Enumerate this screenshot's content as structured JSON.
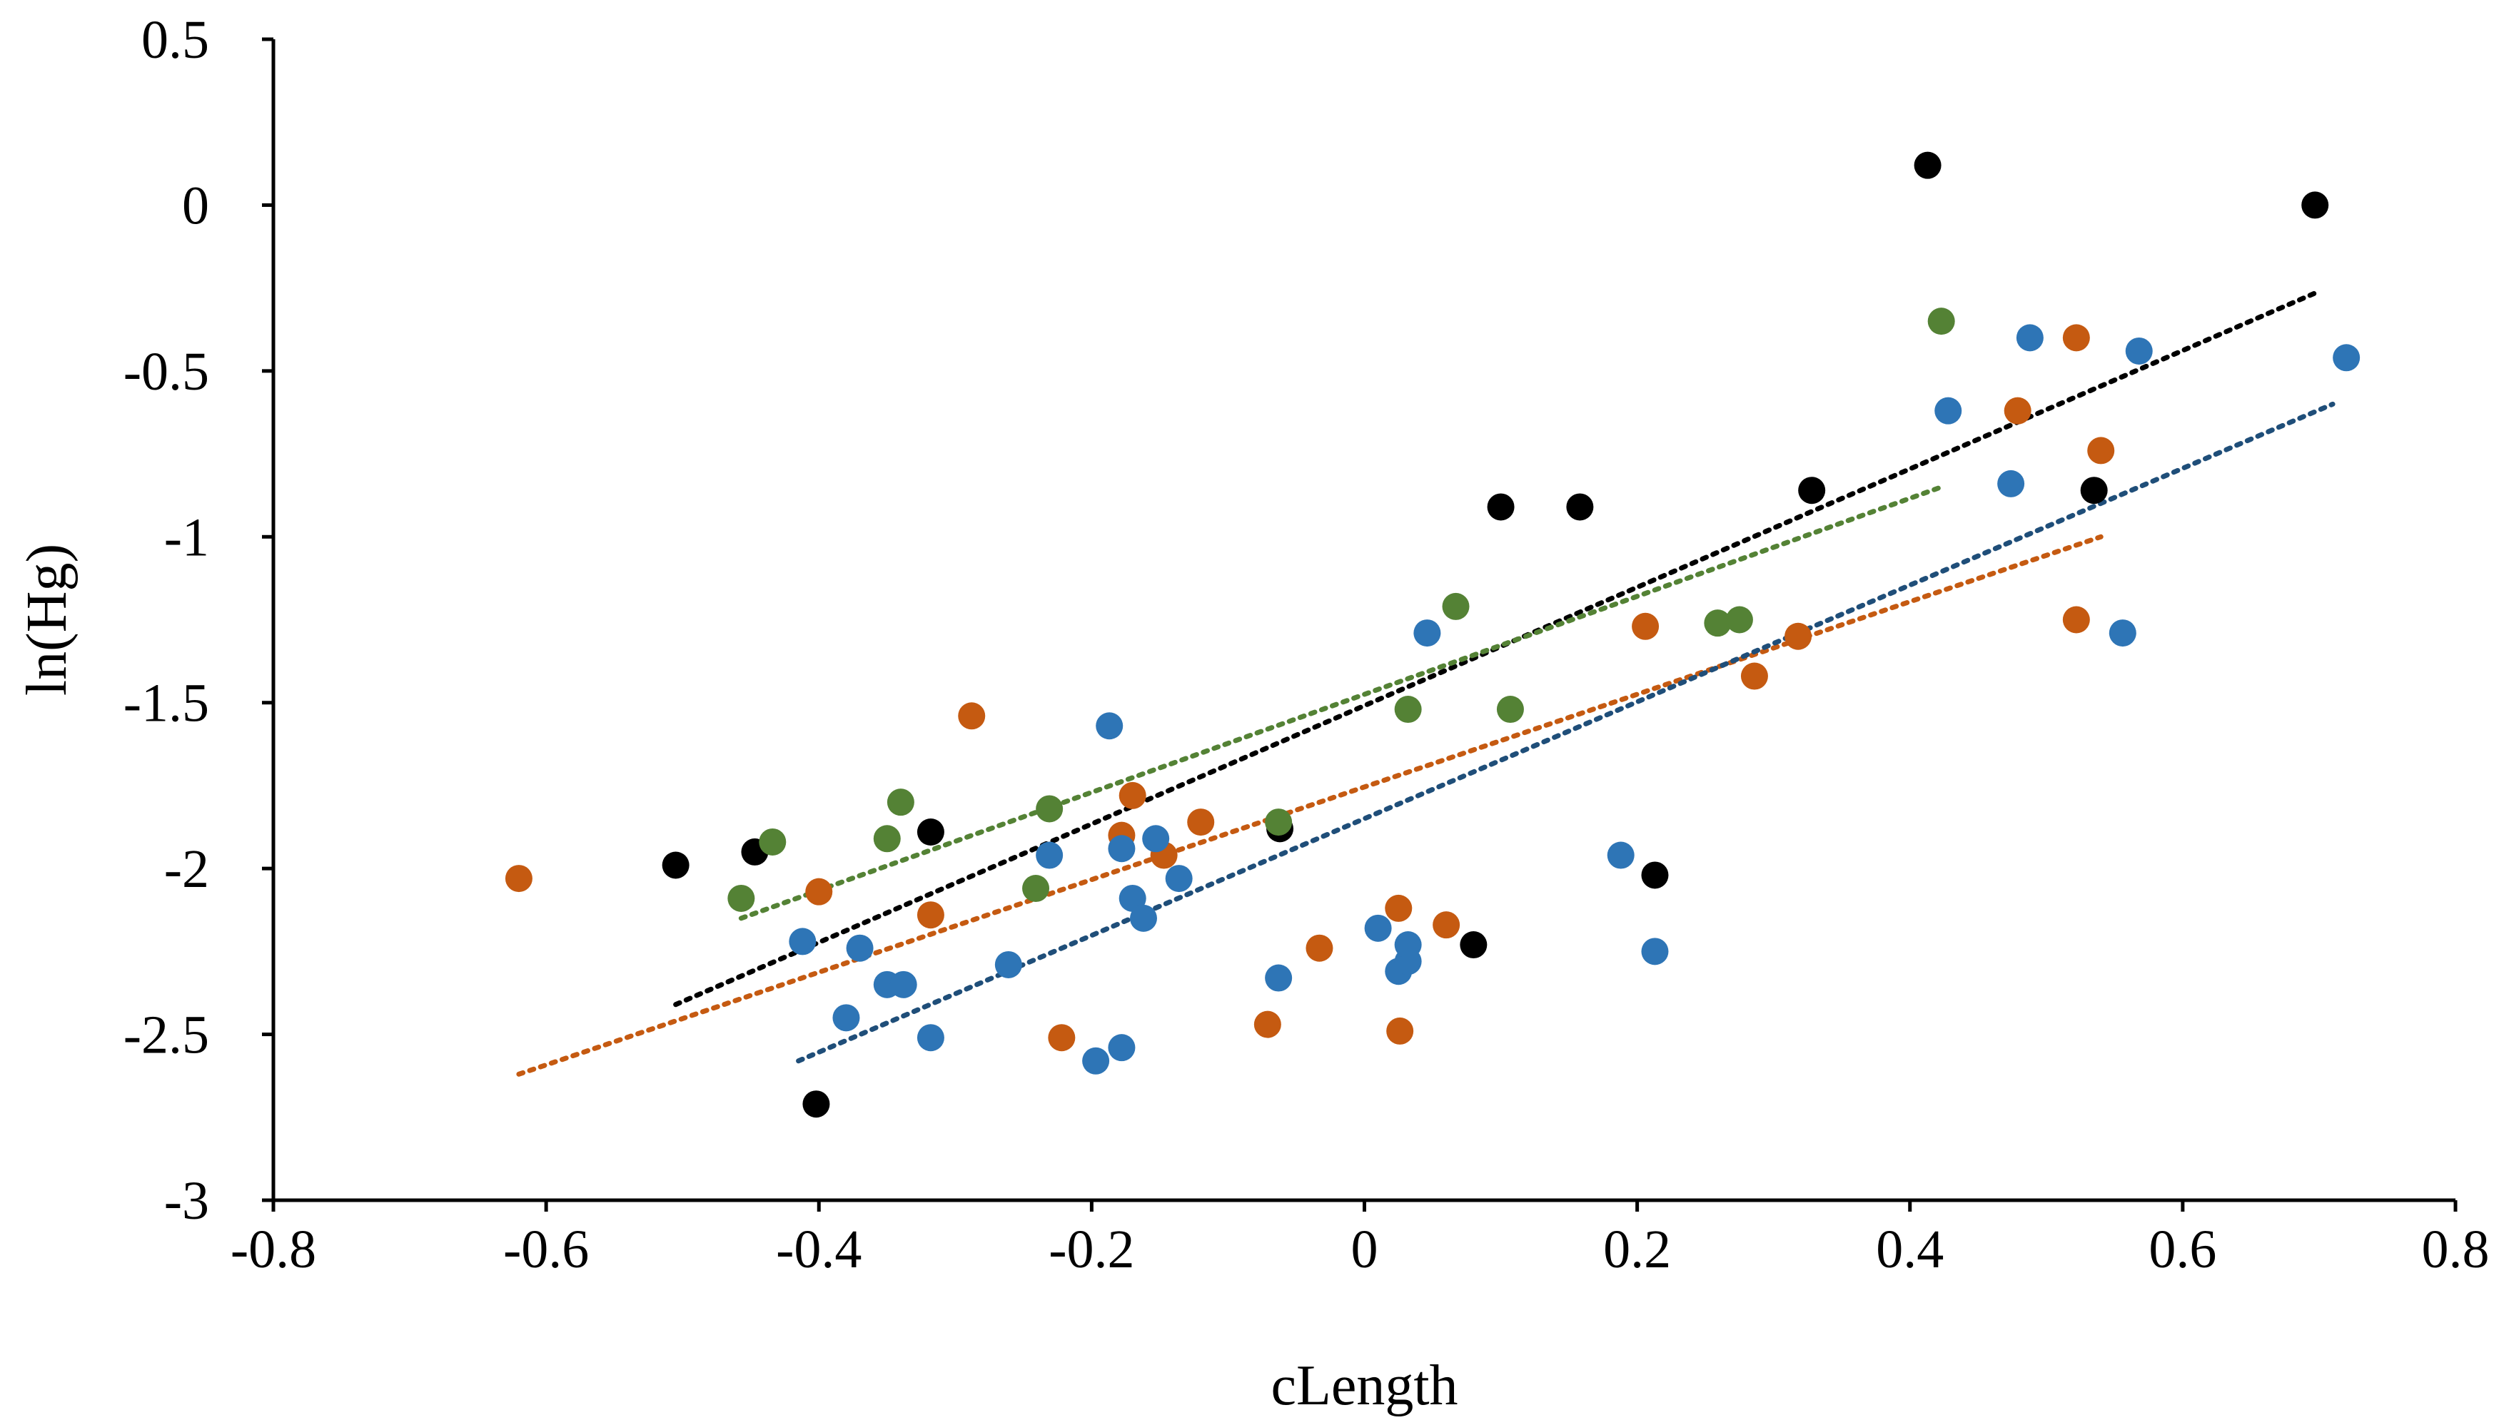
{
  "chart_data": {
    "type": "scatter",
    "title": "",
    "xlabel": "cLength",
    "ylabel": "ln(Hg)",
    "xlim": [
      -0.8,
      0.8
    ],
    "ylim": [
      -3,
      0.5
    ],
    "x_ticks": [
      -0.8,
      -0.6,
      -0.4,
      -0.2,
      0,
      0.2,
      0.4,
      0.6,
      0.8
    ],
    "x_tick_labels": [
      "-0.8",
      "-0.6",
      "-0.4",
      "-0.2",
      "0",
      "0.2",
      "0.4",
      "0.6",
      "0.8"
    ],
    "y_ticks": [
      0.5,
      0,
      -0.5,
      -1,
      -1.5,
      -2,
      -2.5,
      -3
    ],
    "y_tick_labels": [
      "0.5",
      "0",
      "-0.5",
      "-1",
      "-1.5",
      "-2",
      "-2.5",
      "-3"
    ],
    "grid": false,
    "legend": "none",
    "series": [
      {
        "name": "black",
        "color": "#000000",
        "trend_color": "#000000",
        "trendline": {
          "x": [
            -0.505,
            0.7
          ],
          "y": [
            -2.41,
            -0.26
          ]
        },
        "points": [
          [
            -0.505,
            -1.99
          ],
          [
            -0.447,
            -1.95
          ],
          [
            -0.318,
            -1.89
          ],
          [
            -0.402,
            -2.71
          ],
          [
            -0.062,
            -1.88
          ],
          [
            0.1,
            -0.91
          ],
          [
            0.158,
            -0.91
          ],
          [
            0.213,
            -2.02
          ],
          [
            0.08,
            -2.23
          ],
          [
            0.328,
            -0.86
          ],
          [
            0.413,
            0.12
          ],
          [
            0.535,
            -0.86
          ],
          [
            0.697,
            0.0
          ]
        ]
      },
      {
        "name": "green",
        "color": "#548235",
        "trend_color": "#548235",
        "trendline": {
          "x": [
            -0.457,
            0.423
          ],
          "y": [
            -2.15,
            -0.85
          ]
        },
        "points": [
          [
            -0.457,
            -2.09
          ],
          [
            -0.434,
            -1.92
          ],
          [
            -0.35,
            -1.91
          ],
          [
            -0.34,
            -1.8
          ],
          [
            -0.231,
            -1.82
          ],
          [
            -0.241,
            -2.06
          ],
          [
            -0.063,
            -1.86
          ],
          [
            0.032,
            -1.52
          ],
          [
            0.067,
            -1.21
          ],
          [
            0.107,
            -1.52
          ],
          [
            0.259,
            -1.26
          ],
          [
            0.275,
            -1.25
          ],
          [
            0.423,
            -0.35
          ]
        ]
      },
      {
        "name": "orange",
        "color": "#C55A11",
        "trend_color": "#C55A11",
        "trendline": {
          "x": [
            -0.62,
            0.54
          ],
          "y": [
            -2.62,
            -1.0
          ]
        },
        "points": [
          [
            -0.62,
            -2.03
          ],
          [
            -0.4,
            -2.07
          ],
          [
            -0.318,
            -2.14
          ],
          [
            -0.288,
            -1.54
          ],
          [
            -0.222,
            -2.51
          ],
          [
            -0.178,
            -1.9
          ],
          [
            -0.17,
            -1.78
          ],
          [
            -0.147,
            -1.96
          ],
          [
            -0.12,
            -1.86
          ],
          [
            -0.071,
            -2.47
          ],
          [
            -0.033,
            -2.24
          ],
          [
            0.025,
            -2.12
          ],
          [
            0.026,
            -2.49
          ],
          [
            0.06,
            -2.17
          ],
          [
            0.206,
            -1.27
          ],
          [
            0.286,
            -1.42
          ],
          [
            0.318,
            -1.3
          ],
          [
            0.479,
            -0.62
          ],
          [
            0.522,
            -0.4
          ],
          [
            0.522,
            -1.25
          ],
          [
            0.54,
            -0.74
          ]
        ]
      },
      {
        "name": "blue",
        "color": "#2E75B6",
        "trend_color": "#1F4E79",
        "trendline": {
          "x": [
            -0.415,
            0.71
          ],
          "y": [
            -2.58,
            -0.6
          ]
        },
        "points": [
          [
            -0.412,
            -2.22
          ],
          [
            -0.37,
            -2.24
          ],
          [
            -0.38,
            -2.45
          ],
          [
            -0.35,
            -2.35
          ],
          [
            -0.338,
            -2.35
          ],
          [
            -0.318,
            -2.51
          ],
          [
            -0.261,
            -2.29
          ],
          [
            -0.231,
            -1.96
          ],
          [
            -0.197,
            -2.58
          ],
          [
            -0.187,
            -1.57
          ],
          [
            -0.178,
            -1.94
          ],
          [
            -0.178,
            -2.54
          ],
          [
            -0.17,
            -2.09
          ],
          [
            -0.162,
            -2.15
          ],
          [
            -0.153,
            -1.91
          ],
          [
            -0.136,
            -2.03
          ],
          [
            -0.063,
            -2.33
          ],
          [
            0.01,
            -2.18
          ],
          [
            0.025,
            -2.31
          ],
          [
            0.032,
            -2.28
          ],
          [
            0.032,
            -2.23
          ],
          [
            0.046,
            -1.29
          ],
          [
            0.188,
            -1.96
          ],
          [
            0.213,
            -2.25
          ],
          [
            0.428,
            -0.62
          ],
          [
            0.474,
            -0.84
          ],
          [
            0.488,
            -0.4
          ],
          [
            0.556,
            -1.29
          ],
          [
            0.568,
            -0.44
          ],
          [
            0.72,
            -0.46
          ]
        ]
      }
    ]
  }
}
